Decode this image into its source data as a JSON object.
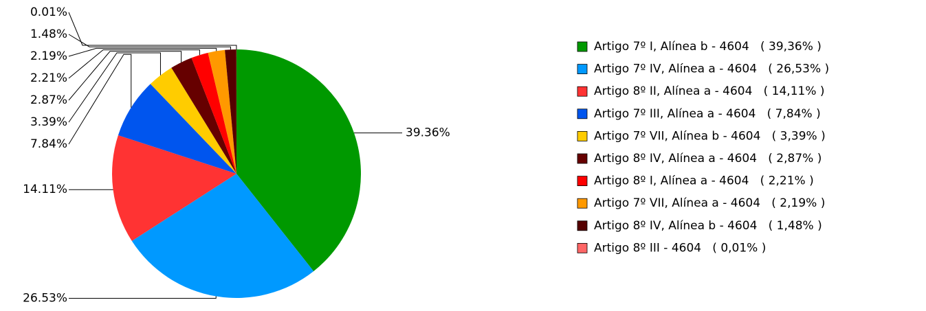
{
  "chart_data": {
    "type": "pie",
    "categories": [
      "Artigo 7º I, Alínea b - 4604   ( 39,36% )",
      "Artigo 7º IV, Alínea a - 4604   ( 26,53% )",
      "Artigo 8º II, Alínea a - 4604   ( 14,11% )",
      "Artigo 7º III, Alínea a - 4604   ( 7,84% )",
      "Artigo 7º VII, Alínea b - 4604   ( 3,39% )",
      "Artigo 8º IV, Alínea a - 4604   ( 2,87% )",
      "Artigo 8º I, Alínea a - 4604   ( 2,21% )",
      "Artigo 7º VII, Alínea a - 4604   ( 2,19% )",
      "Artigo 8º IV, Alínea b - 4604   ( 1,48% )",
      "Artigo 8º III - 4604   ( 0,01% )"
    ],
    "values": [
      39.36,
      26.53,
      14.11,
      7.84,
      3.39,
      2.87,
      2.21,
      2.19,
      1.48,
      0.01
    ],
    "value_labels": [
      "39.36%",
      "26.53%",
      "14.11%",
      "7.84%",
      "3.39%",
      "2.87%",
      "2.21%",
      "2.19%",
      "1.48%",
      "0.01%"
    ],
    "colors": [
      "#009900",
      "#0099ff",
      "#ff3333",
      "#0055ee",
      "#ffcc00",
      "#660000",
      "#ff0000",
      "#ff9900",
      "#550000",
      "#ff6666"
    ]
  }
}
